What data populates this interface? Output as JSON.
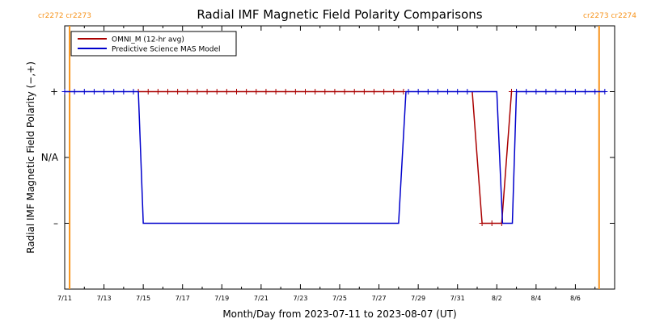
{
  "chart_data": {
    "type": "line",
    "title": "Radial IMF Magnetic Field Polarity Comparisons",
    "xlabel": "Month/Day from 2023-07-11 to 2023-08-07 (UT)",
    "ylabel": "Radial IMF Magnetic Field Polarity (−,+)",
    "xlim": [
      "2023-07-11",
      "2023-08-07"
    ],
    "ylim": [
      -2,
      2
    ],
    "y_ticks": [
      {
        "value": 1,
        "label": "+"
      },
      {
        "value": 0,
        "label": "N/A"
      },
      {
        "value": -1,
        "label": "–"
      }
    ],
    "x_ticks": [
      {
        "date": "2023-07-11",
        "label": "7/11"
      },
      {
        "date": "2023-07-13",
        "label": "7/13"
      },
      {
        "date": "2023-07-15",
        "label": "7/15"
      },
      {
        "date": "2023-07-17",
        "label": "7/17"
      },
      {
        "date": "2023-07-19",
        "label": "7/19"
      },
      {
        "date": "2023-07-21",
        "label": "7/21"
      },
      {
        "date": "2023-07-23",
        "label": "7/23"
      },
      {
        "date": "2023-07-25",
        "label": "7/25"
      },
      {
        "date": "2023-07-27",
        "label": "7/27"
      },
      {
        "date": "2023-07-29",
        "label": "7/29"
      },
      {
        "date": "2023-07-31",
        "label": "7/31"
      },
      {
        "date": "2023-08-02",
        "label": "8/2"
      },
      {
        "date": "2023-08-04",
        "label": "8/4"
      },
      {
        "date": "2023-08-06",
        "label": "8/6"
      }
    ],
    "grid": false,
    "legend_position": "top-left",
    "rotations": [
      {
        "date": "2023-07-11 06:00",
        "label": "cr2272 cr2273",
        "color": "#f7941d",
        "label_side": "left"
      },
      {
        "date": "2023-08-07 05:00",
        "label": "cr2273 cr2274",
        "color": "#f7941d",
        "label_side": "right"
      }
    ],
    "series": [
      {
        "name": "OMNI_M (12-hr avg)",
        "color": "#aa0000",
        "marker": "plus",
        "points": [
          [
            "2023-07-14 18:00",
            1
          ],
          [
            "2023-07-15 06:00",
            1
          ],
          [
            "2023-07-15 18:00",
            1
          ],
          [
            "2023-07-16 06:00",
            1
          ],
          [
            "2023-07-16 18:00",
            1
          ],
          [
            "2023-07-17 06:00",
            1
          ],
          [
            "2023-07-17 18:00",
            1
          ],
          [
            "2023-07-18 06:00",
            1
          ],
          [
            "2023-07-18 18:00",
            1
          ],
          [
            "2023-07-19 06:00",
            1
          ],
          [
            "2023-07-19 18:00",
            1
          ],
          [
            "2023-07-20 06:00",
            1
          ],
          [
            "2023-07-20 18:00",
            1
          ],
          [
            "2023-07-21 06:00",
            1
          ],
          [
            "2023-07-21 18:00",
            1
          ],
          [
            "2023-07-22 06:00",
            1
          ],
          [
            "2023-07-22 18:00",
            1
          ],
          [
            "2023-07-23 06:00",
            1
          ],
          [
            "2023-07-23 18:00",
            1
          ],
          [
            "2023-07-24 06:00",
            1
          ],
          [
            "2023-07-24 18:00",
            1
          ],
          [
            "2023-07-25 06:00",
            1
          ],
          [
            "2023-07-25 18:00",
            1
          ],
          [
            "2023-07-26 06:00",
            1
          ],
          [
            "2023-07-26 18:00",
            1
          ],
          [
            "2023-07-27 06:00",
            1
          ],
          [
            "2023-07-27 18:00",
            1
          ],
          [
            "2023-07-28 06:00",
            1
          ],
          [
            "2023-08-01 06:00",
            -1
          ],
          [
            "2023-08-01 18:00",
            -1
          ],
          [
            "2023-08-02 06:00",
            -1
          ],
          [
            "2023-08-02 18:00",
            1
          ]
        ],
        "lines": [
          [
            [
              "2023-07-14 18:00",
              1
            ],
            [
              "2023-07-28 06:00",
              1
            ]
          ],
          [
            [
              "2023-07-31 18:00",
              1
            ],
            [
              "2023-08-01 06:00",
              -1
            ],
            [
              "2023-08-01 18:00",
              -1
            ],
            [
              "2023-08-02 06:00",
              -1
            ],
            [
              "2023-08-02 18:00",
              1
            ]
          ]
        ]
      },
      {
        "name": "Predictive Science MAS Model",
        "color": "#0000cc",
        "marker": "plus",
        "points": [
          [
            "2023-07-11 00:00",
            1
          ],
          [
            "2023-07-11 12:00",
            1
          ],
          [
            "2023-07-12 00:00",
            1
          ],
          [
            "2023-07-12 12:00",
            1
          ],
          [
            "2023-07-13 00:00",
            1
          ],
          [
            "2023-07-13 12:00",
            1
          ],
          [
            "2023-07-14 00:00",
            1
          ],
          [
            "2023-07-14 12:00",
            1
          ],
          [
            "2023-07-28 12:00",
            1
          ],
          [
            "2023-07-29 00:00",
            1
          ],
          [
            "2023-07-29 12:00",
            1
          ],
          [
            "2023-07-30 00:00",
            1
          ],
          [
            "2023-07-30 12:00",
            1
          ],
          [
            "2023-07-31 00:00",
            1
          ],
          [
            "2023-07-31 12:00",
            1
          ],
          [
            "2023-08-03 00:00",
            1
          ],
          [
            "2023-08-03 12:00",
            1
          ],
          [
            "2023-08-04 00:00",
            1
          ],
          [
            "2023-08-04 12:00",
            1
          ],
          [
            "2023-08-05 00:00",
            1
          ],
          [
            "2023-08-05 12:00",
            1
          ],
          [
            "2023-08-06 00:00",
            1
          ],
          [
            "2023-08-06 12:00",
            1
          ],
          [
            "2023-08-07 00:00",
            1
          ],
          [
            "2023-08-07 12:00",
            1
          ]
        ],
        "lines": [
          [
            [
              "2023-07-11 00:00",
              1
            ],
            [
              "2023-07-14 18:00",
              1
            ],
            [
              "2023-07-15 00:00",
              -1
            ],
            [
              "2023-07-28 00:00",
              -1
            ],
            [
              "2023-07-28 09:00",
              1
            ],
            [
              "2023-08-02 00:00",
              1
            ],
            [
              "2023-08-02 07:00",
              -1
            ],
            [
              "2023-08-02 19:00",
              -1
            ],
            [
              "2023-08-03 00:00",
              1
            ],
            [
              "2023-08-07 12:00",
              1
            ]
          ]
        ]
      }
    ]
  }
}
